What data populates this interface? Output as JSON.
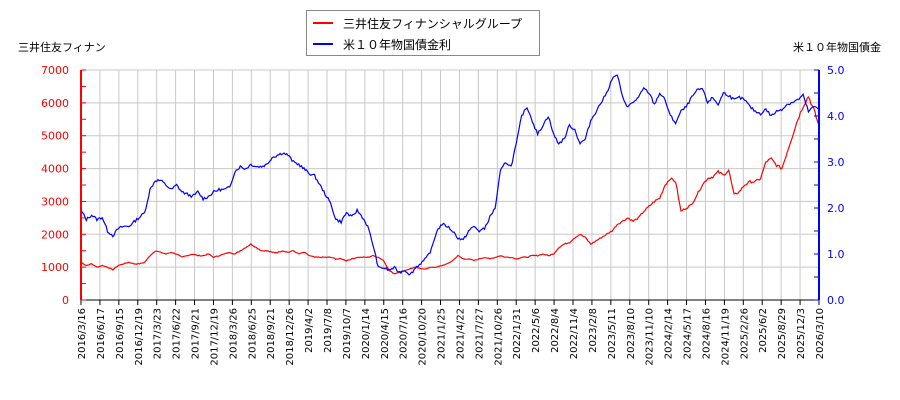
{
  "chart_data": {
    "type": "line",
    "title": "",
    "legend_position": "top-center",
    "grid": true,
    "left_axis": {
      "label": "三井住友フィナン",
      "range": [
        0,
        7000
      ],
      "ticks": [
        0,
        1000,
        2000,
        3000,
        4000,
        5000,
        6000,
        7000
      ],
      "color": "#ff0000"
    },
    "right_axis": {
      "label": "米１０年物国債金",
      "range": [
        0.0,
        5.0
      ],
      "ticks": [
        "0.0",
        "1.0",
        "2.0",
        "3.0",
        "4.0",
        "5.0"
      ],
      "color": "#0000ff"
    },
    "x_tick_labels": [
      "2016/3/16",
      "2016/6/17",
      "2016/9/15",
      "2016/12/19",
      "2017/3/23",
      "2017/6/22",
      "2017/9/21",
      "2017/12/19",
      "2018/3/26",
      "2018/6/25",
      "2018/9/21",
      "2018/12/26",
      "2019/4/2",
      "2019/7/8",
      "2019/10/7",
      "2020/1/14",
      "2020/4/15",
      "2020/7/16",
      "2020/10/20",
      "2021/1/25",
      "2021/4/22",
      "2021/7/27",
      "2021/10/26",
      "2022/1/31",
      "2022/5/6",
      "2022/8/4",
      "2022/11/4",
      "2023/2/8",
      "2023/5/11",
      "2023/8/10",
      "2023/11/10",
      "2024/2/14",
      "2024/5/17",
      "2024/8/16",
      "2024/11/19",
      "2025/2/26",
      "2025/6/2",
      "2025/8/29",
      "2025/12/3",
      "2026/3/10"
    ],
    "series": [
      {
        "name": "三井住友フィナンシャルグループ",
        "axis": "left",
        "color": "#ff0000",
        "points": [
          [
            0,
            1150
          ],
          [
            2,
            1050
          ],
          [
            4,
            1100
          ],
          [
            6,
            1000
          ],
          [
            8,
            1050
          ],
          [
            10,
            1000
          ],
          [
            12,
            920
          ],
          [
            14,
            1050
          ],
          [
            16,
            1100
          ],
          [
            18,
            1150
          ],
          [
            20,
            1100
          ],
          [
            22,
            1100
          ],
          [
            24,
            1150
          ],
          [
            26,
            1350
          ],
          [
            28,
            1500
          ],
          [
            30,
            1450
          ],
          [
            32,
            1400
          ],
          [
            34,
            1450
          ],
          [
            36,
            1400
          ],
          [
            38,
            1300
          ],
          [
            40,
            1350
          ],
          [
            42,
            1400
          ],
          [
            44,
            1350
          ],
          [
            46,
            1350
          ],
          [
            48,
            1400
          ],
          [
            50,
            1300
          ],
          [
            52,
            1350
          ],
          [
            54,
            1400
          ],
          [
            56,
            1450
          ],
          [
            58,
            1400
          ],
          [
            60,
            1500
          ],
          [
            62,
            1600
          ],
          [
            64,
            1700
          ],
          [
            66,
            1600
          ],
          [
            68,
            1500
          ],
          [
            70,
            1500
          ],
          [
            72,
            1450
          ],
          [
            74,
            1450
          ],
          [
            76,
            1500
          ],
          [
            78,
            1450
          ],
          [
            80,
            1500
          ],
          [
            82,
            1400
          ],
          [
            84,
            1450
          ],
          [
            86,
            1350
          ],
          [
            88,
            1300
          ],
          [
            90,
            1300
          ],
          [
            92,
            1300
          ],
          [
            94,
            1300
          ],
          [
            96,
            1250
          ],
          [
            98,
            1250
          ],
          [
            100,
            1200
          ],
          [
            102,
            1250
          ],
          [
            104,
            1300
          ],
          [
            106,
            1300
          ],
          [
            108,
            1300
          ],
          [
            110,
            1350
          ],
          [
            112,
            1300
          ],
          [
            114,
            1200
          ],
          [
            116,
            900
          ],
          [
            118,
            800
          ],
          [
            120,
            850
          ],
          [
            122,
            900
          ],
          [
            124,
            950
          ],
          [
            126,
            1000
          ],
          [
            128,
            950
          ],
          [
            130,
            950
          ],
          [
            132,
            1000
          ],
          [
            134,
            1000
          ],
          [
            136,
            1050
          ],
          [
            138,
            1100
          ],
          [
            140,
            1200
          ],
          [
            142,
            1350
          ],
          [
            144,
            1250
          ],
          [
            146,
            1250
          ],
          [
            148,
            1200
          ],
          [
            150,
            1250
          ],
          [
            152,
            1300
          ],
          [
            154,
            1250
          ],
          [
            156,
            1300
          ],
          [
            158,
            1350
          ],
          [
            160,
            1300
          ],
          [
            162,
            1300
          ],
          [
            164,
            1250
          ],
          [
            166,
            1300
          ],
          [
            168,
            1300
          ],
          [
            170,
            1350
          ],
          [
            172,
            1350
          ],
          [
            174,
            1400
          ],
          [
            176,
            1350
          ],
          [
            178,
            1400
          ],
          [
            180,
            1600
          ],
          [
            182,
            1700
          ],
          [
            184,
            1750
          ],
          [
            186,
            1900
          ],
          [
            188,
            2000
          ],
          [
            190,
            1900
          ],
          [
            192,
            1700
          ],
          [
            194,
            1800
          ],
          [
            196,
            1900
          ],
          [
            198,
            2000
          ],
          [
            200,
            2100
          ],
          [
            202,
            2300
          ],
          [
            204,
            2400
          ],
          [
            206,
            2500
          ],
          [
            208,
            2400
          ],
          [
            210,
            2500
          ],
          [
            212,
            2700
          ],
          [
            214,
            2850
          ],
          [
            216,
            3000
          ],
          [
            218,
            3100
          ],
          [
            220,
            3500
          ],
          [
            222,
            3700
          ],
          [
            224,
            3600
          ],
          [
            226,
            2700
          ],
          [
            228,
            2800
          ],
          [
            230,
            2900
          ],
          [
            232,
            3200
          ],
          [
            234,
            3500
          ],
          [
            236,
            3700
          ],
          [
            238,
            3750
          ],
          [
            240,
            3900
          ],
          [
            242,
            3800
          ],
          [
            244,
            3950
          ],
          [
            246,
            3200
          ],
          [
            248,
            3300
          ],
          [
            250,
            3500
          ],
          [
            252,
            3600
          ],
          [
            254,
            3600
          ],
          [
            256,
            3700
          ],
          [
            258,
            4200
          ],
          [
            260,
            4300
          ],
          [
            262,
            4100
          ],
          [
            264,
            4000
          ],
          [
            266,
            4500
          ],
          [
            268,
            5000
          ],
          [
            270,
            5500
          ],
          [
            272,
            5900
          ],
          [
            274,
            6200
          ],
          [
            276,
            5800
          ],
          [
            278,
            5300
          ]
        ]
      },
      {
        "name": "米１０年物国債金利",
        "axis": "right",
        "color": "#0000ff",
        "points": [
          [
            0,
            1.95
          ],
          [
            2,
            1.75
          ],
          [
            4,
            1.85
          ],
          [
            6,
            1.75
          ],
          [
            8,
            1.8
          ],
          [
            10,
            1.5
          ],
          [
            12,
            1.4
          ],
          [
            14,
            1.55
          ],
          [
            16,
            1.6
          ],
          [
            18,
            1.6
          ],
          [
            20,
            1.7
          ],
          [
            22,
            1.8
          ],
          [
            24,
            1.9
          ],
          [
            26,
            2.4
          ],
          [
            28,
            2.6
          ],
          [
            30,
            2.6
          ],
          [
            32,
            2.5
          ],
          [
            34,
            2.4
          ],
          [
            36,
            2.5
          ],
          [
            38,
            2.35
          ],
          [
            40,
            2.3
          ],
          [
            42,
            2.25
          ],
          [
            44,
            2.35
          ],
          [
            46,
            2.2
          ],
          [
            48,
            2.25
          ],
          [
            50,
            2.35
          ],
          [
            52,
            2.4
          ],
          [
            54,
            2.4
          ],
          [
            56,
            2.45
          ],
          [
            58,
            2.8
          ],
          [
            60,
            2.9
          ],
          [
            62,
            2.85
          ],
          [
            64,
            2.95
          ],
          [
            66,
            2.9
          ],
          [
            68,
            2.9
          ],
          [
            70,
            2.95
          ],
          [
            72,
            3.1
          ],
          [
            74,
            3.15
          ],
          [
            76,
            3.2
          ],
          [
            78,
            3.15
          ],
          [
            80,
            3.0
          ],
          [
            82,
            2.95
          ],
          [
            84,
            2.85
          ],
          [
            86,
            2.75
          ],
          [
            88,
            2.7
          ],
          [
            90,
            2.5
          ],
          [
            92,
            2.3
          ],
          [
            94,
            2.1
          ],
          [
            96,
            1.75
          ],
          [
            98,
            1.7
          ],
          [
            100,
            1.9
          ],
          [
            102,
            1.8
          ],
          [
            104,
            1.95
          ],
          [
            106,
            1.8
          ],
          [
            108,
            1.6
          ],
          [
            110,
            1.2
          ],
          [
            112,
            0.7
          ],
          [
            114,
            0.7
          ],
          [
            116,
            0.65
          ],
          [
            118,
            0.7
          ],
          [
            120,
            0.6
          ],
          [
            122,
            0.65
          ],
          [
            124,
            0.55
          ],
          [
            126,
            0.7
          ],
          [
            128,
            0.8
          ],
          [
            130,
            0.9
          ],
          [
            132,
            1.1
          ],
          [
            134,
            1.5
          ],
          [
            136,
            1.65
          ],
          [
            138,
            1.6
          ],
          [
            140,
            1.5
          ],
          [
            142,
            1.35
          ],
          [
            144,
            1.3
          ],
          [
            146,
            1.5
          ],
          [
            148,
            1.6
          ],
          [
            150,
            1.5
          ],
          [
            152,
            1.55
          ],
          [
            154,
            1.8
          ],
          [
            156,
            2.0
          ],
          [
            158,
            2.8
          ],
          [
            160,
            3.0
          ],
          [
            162,
            2.9
          ],
          [
            164,
            3.4
          ],
          [
            166,
            4.0
          ],
          [
            168,
            4.2
          ],
          [
            170,
            3.9
          ],
          [
            172,
            3.6
          ],
          [
            174,
            3.8
          ],
          [
            176,
            4.0
          ],
          [
            178,
            3.6
          ],
          [
            180,
            3.4
          ],
          [
            182,
            3.5
          ],
          [
            184,
            3.8
          ],
          [
            186,
            3.7
          ],
          [
            188,
            3.4
          ],
          [
            190,
            3.5
          ],
          [
            192,
            3.9
          ],
          [
            194,
            4.1
          ],
          [
            196,
            4.3
          ],
          [
            198,
            4.5
          ],
          [
            200,
            4.8
          ],
          [
            202,
            4.9
          ],
          [
            204,
            4.4
          ],
          [
            206,
            4.2
          ],
          [
            208,
            4.3
          ],
          [
            210,
            4.4
          ],
          [
            212,
            4.6
          ],
          [
            214,
            4.5
          ],
          [
            216,
            4.25
          ],
          [
            218,
            4.5
          ],
          [
            220,
            4.35
          ],
          [
            222,
            4.0
          ],
          [
            224,
            3.85
          ],
          [
            226,
            4.1
          ],
          [
            228,
            4.2
          ],
          [
            230,
            4.4
          ],
          [
            232,
            4.55
          ],
          [
            234,
            4.6
          ],
          [
            236,
            4.3
          ],
          [
            238,
            4.4
          ],
          [
            240,
            4.25
          ],
          [
            242,
            4.5
          ],
          [
            244,
            4.45
          ],
          [
            246,
            4.35
          ],
          [
            248,
            4.4
          ],
          [
            250,
            4.35
          ],
          [
            252,
            4.2
          ],
          [
            254,
            4.1
          ],
          [
            256,
            4.05
          ],
          [
            258,
            4.15
          ],
          [
            260,
            4.0
          ],
          [
            262,
            4.1
          ],
          [
            264,
            4.15
          ],
          [
            266,
            4.25
          ],
          [
            268,
            4.3
          ],
          [
            270,
            4.35
          ],
          [
            272,
            4.45
          ],
          [
            274,
            4.1
          ],
          [
            276,
            4.2
          ],
          [
            278,
            4.15
          ]
        ]
      }
    ]
  },
  "legend": {
    "items": [
      {
        "label": "三井住友フィナンシャルグループ",
        "color": "#ff0000"
      },
      {
        "label": "米１０年物国債金利",
        "color": "#0000ff"
      }
    ]
  }
}
